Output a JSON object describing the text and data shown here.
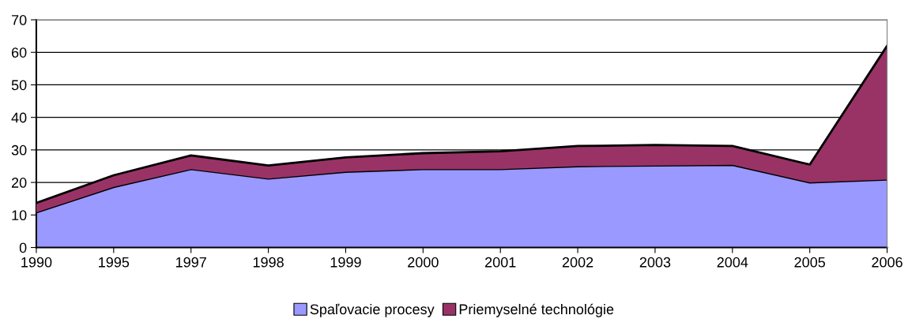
{
  "chart_data": {
    "type": "area",
    "stacked": true,
    "categories": [
      "1990",
      "1995",
      "1997",
      "1998",
      "1999",
      "2000",
      "2001",
      "2002",
      "2003",
      "2004",
      "2005",
      "2006"
    ],
    "series": [
      {
        "name": "Spaľovacie procesy",
        "color": "#9999ff",
        "values": [
          10.8,
          18.6,
          24.1,
          21.2,
          23.3,
          24.1,
          24.1,
          25.0,
          25.2,
          25.4,
          20.0,
          20.9
        ]
      },
      {
        "name": "Priemyselné technológie",
        "color": "#993366",
        "values": [
          2.9,
          3.6,
          4.2,
          4.0,
          4.4,
          4.9,
          5.5,
          6.2,
          6.3,
          5.8,
          5.5,
          41.1
        ]
      }
    ],
    "ylim": [
      0,
      70
    ],
    "yticks": [
      0,
      10,
      20,
      30,
      40,
      50,
      60,
      70
    ],
    "grid": "y",
    "legend": "bottom"
  }
}
